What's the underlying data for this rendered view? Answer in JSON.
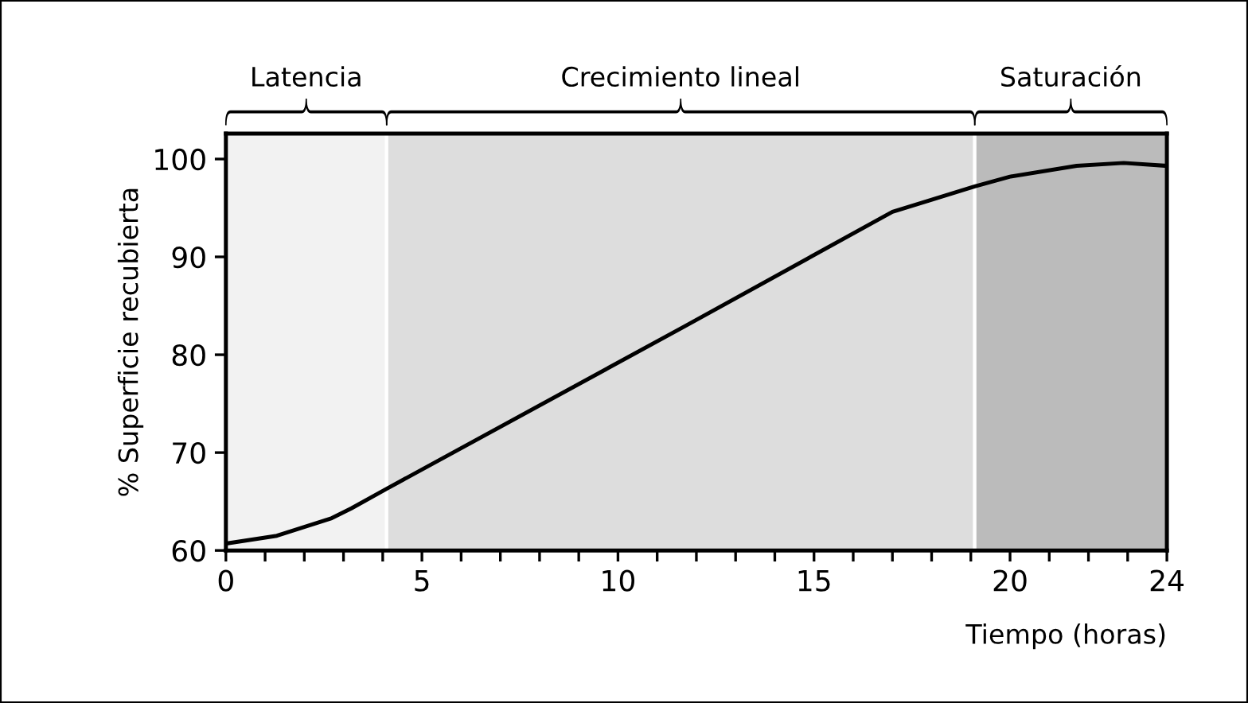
{
  "chart_data": {
    "type": "line",
    "xlabel": "Tiempo (horas)",
    "ylabel": "% Superficie recubierta",
    "x": [
      0,
      1.3,
      2.7,
      3.2,
      4.1,
      11.7,
      17.0,
      19.1,
      20.0,
      21.7,
      22.9,
      24
    ],
    "series": [
      {
        "color": "#000000",
        "values": [
          60.7,
          61.5,
          63.3,
          64.3,
          66.3,
          82.9,
          94.6,
          97.2,
          98.2,
          99.3,
          99.6,
          99.3
        ]
      }
    ],
    "xlim": [
      0,
      24
    ],
    "ylim": [
      60,
      102.6
    ],
    "xticks": [
      0,
      {
        "value": 1,
        "label": null
      },
      {
        "value": 2,
        "label": null
      },
      {
        "value": 3,
        "label": null
      },
      {
        "value": 4,
        "label": null
      },
      5,
      {
        "value": 6,
        "label": null
      },
      {
        "value": 7,
        "label": null
      },
      {
        "value": 8,
        "label": null
      },
      {
        "value": 9,
        "label": null
      },
      10,
      {
        "value": 11,
        "label": null
      },
      {
        "value": 12,
        "label": null
      },
      {
        "value": 13,
        "label": null
      },
      {
        "value": 14,
        "label": null
      },
      15,
      {
        "value": 16,
        "label": null
      },
      {
        "value": 17,
        "label": null
      },
      {
        "value": 18,
        "label": null
      },
      {
        "value": 19,
        "label": null
      },
      20,
      {
        "value": 21,
        "label": null
      },
      {
        "value": 22,
        "label": null
      },
      {
        "value": 23,
        "label": null
      },
      24
    ],
    "yticks": [
      60,
      70,
      80,
      90,
      100
    ],
    "bands": [
      {
        "axis": "x",
        "from": 0,
        "to": 4.1,
        "label": "Latencia",
        "color": "#f2f2f2"
      },
      {
        "axis": "x",
        "from": 4.1,
        "to": 19.1,
        "label": "Crecimiento lineal",
        "color": "#dddddd"
      },
      {
        "axis": "x",
        "from": 19.1,
        "to": 24,
        "label": "Saturación",
        "color": "#bbbbbb"
      }
    ],
    "grid": false,
    "marker": "none",
    "line_style": "solid"
  }
}
